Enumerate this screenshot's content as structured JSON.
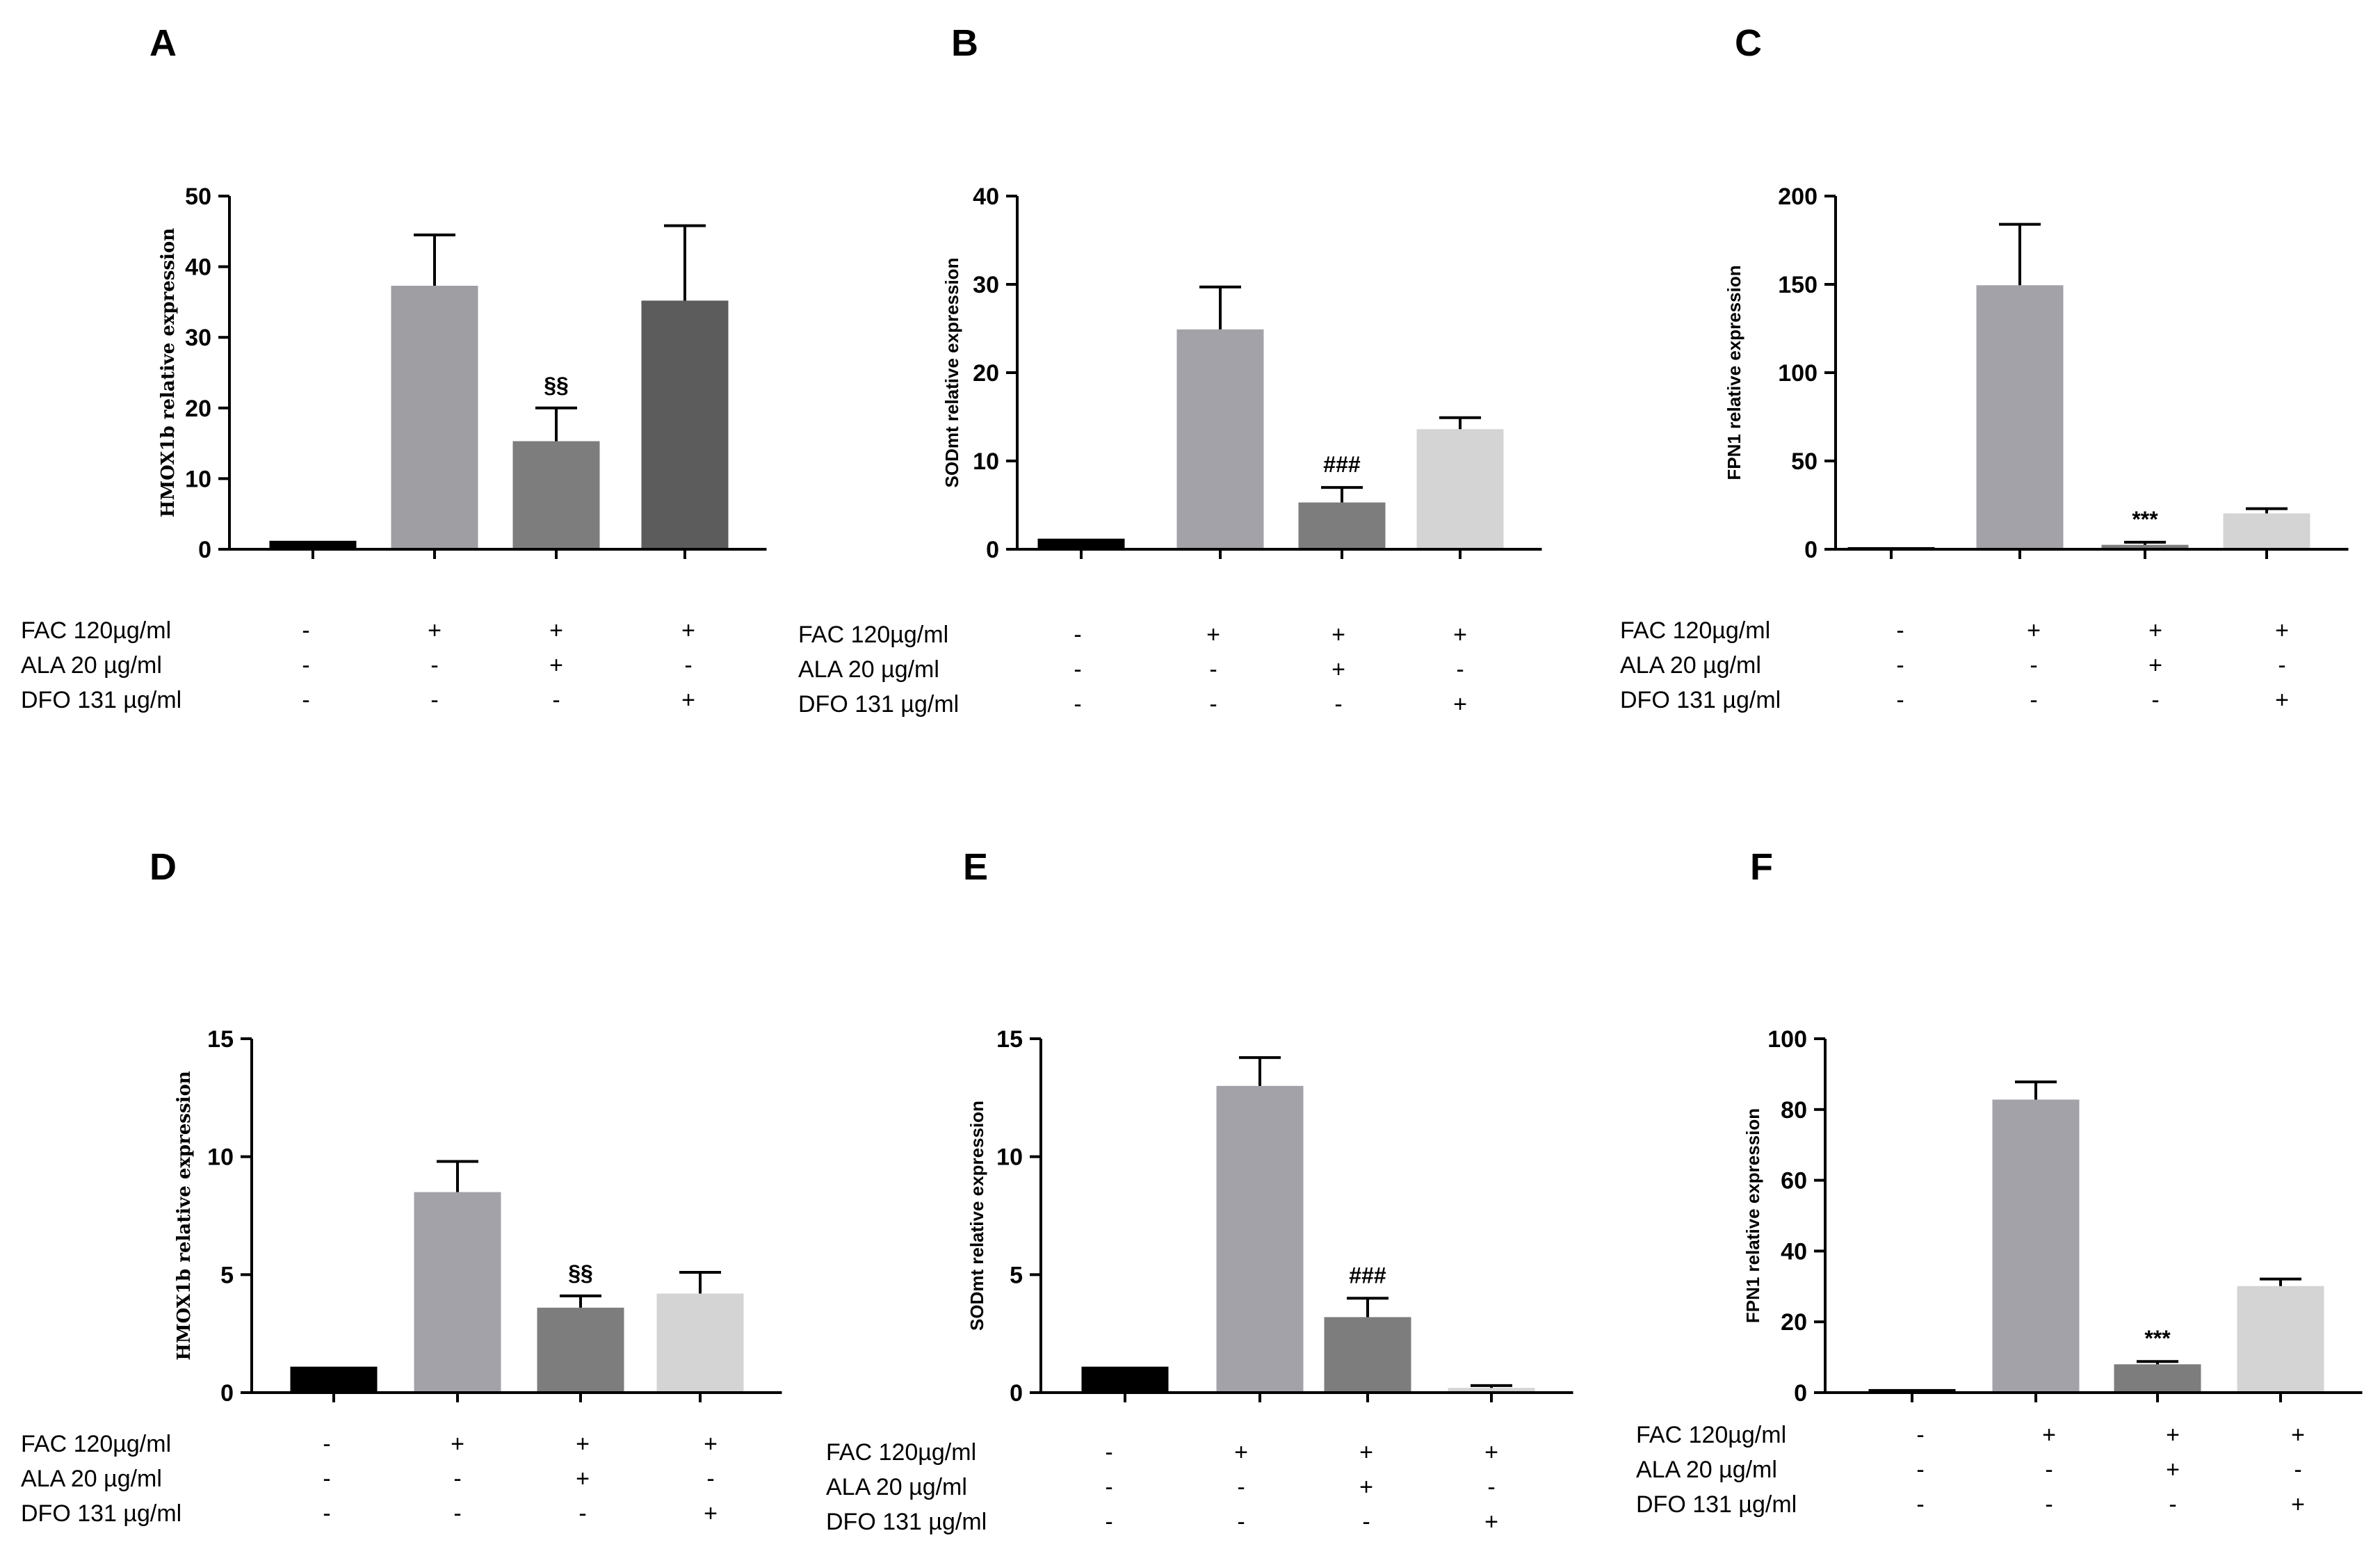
{
  "chart_data": [
    {
      "type": "bar",
      "panel": "A",
      "ylabel": "HMOX1b relative expression",
      "ylabel_serif": true,
      "ylim": [
        0,
        50
      ],
      "yticks": [
        0,
        10,
        20,
        30,
        40,
        50
      ],
      "values": [
        1.2,
        37.3,
        15.3,
        35.2
      ],
      "errors": [
        0,
        7.2,
        4.7,
        10.6
      ],
      "colors": [
        "#000000",
        "#9e9ea3",
        "#7d7d7d",
        "#5c5c5c"
      ],
      "annotations": [
        "",
        "",
        "§§",
        ""
      ],
      "conditions": [
        {
          "label": "FAC 120µg/ml",
          "signs": [
            "-",
            "+",
            "+",
            "+"
          ]
        },
        {
          "label": "ALA 20 µg/ml",
          "signs": [
            "-",
            "-",
            "+",
            "-"
          ]
        },
        {
          "label": "DFO 131 µg/ml",
          "signs": [
            "-",
            "-",
            "-",
            "+"
          ]
        }
      ]
    },
    {
      "type": "bar",
      "panel": "B",
      "ylabel": "SODmt relative expression",
      "ylabel_serif": false,
      "ylim": [
        0,
        40
      ],
      "yticks": [
        0,
        10,
        20,
        30,
        40
      ],
      "values": [
        1.2,
        24.9,
        5.3,
        13.6
      ],
      "errors": [
        0,
        4.8,
        1.7,
        1.3
      ],
      "colors": [
        "#000000",
        "#a3a2a8",
        "#7d7d7d",
        "#d4d4d4"
      ],
      "annotations": [
        "",
        "",
        "###",
        ""
      ],
      "conditions": [
        {
          "label": "FAC 120µg/ml",
          "signs": [
            "-",
            "+",
            "+",
            "+"
          ]
        },
        {
          "label": "ALA 20 µg/ml",
          "signs": [
            "-",
            "-",
            "+",
            "-"
          ]
        },
        {
          "label": "DFO 131 µg/ml",
          "signs": [
            "-",
            "-",
            "-",
            "+"
          ]
        }
      ]
    },
    {
      "type": "bar",
      "panel": "C",
      "ylabel": "FPN1 relative expression",
      "ylabel_serif": false,
      "ylim": [
        0,
        200
      ],
      "yticks": [
        0,
        50,
        100,
        150,
        200
      ],
      "values": [
        1.2,
        149.5,
        2.5,
        20.3
      ],
      "errors": [
        0,
        34.5,
        1.5,
        2.7
      ],
      "colors": [
        "#000000",
        "#a3a2a8",
        "#7d7d7d",
        "#d4d4d4"
      ],
      "annotations": [
        "",
        "",
        "***",
        ""
      ],
      "conditions": [
        {
          "label": "FAC 120µg/ml",
          "signs": [
            "-",
            "+",
            "+",
            "+"
          ]
        },
        {
          "label": "ALA 20 µg/ml",
          "signs": [
            "-",
            "-",
            "+",
            "-"
          ]
        },
        {
          "label": "DFO 131 µg/ml",
          "signs": [
            "-",
            "-",
            "-",
            "+"
          ]
        }
      ]
    },
    {
      "type": "bar",
      "panel": "D",
      "ylabel": "HMOX1b relative expression",
      "ylabel_serif": true,
      "ylim": [
        0,
        15
      ],
      "yticks": [
        0,
        5,
        10,
        15
      ],
      "values": [
        1.1,
        8.5,
        3.6,
        4.2
      ],
      "errors": [
        0,
        1.3,
        0.5,
        0.9
      ],
      "colors": [
        "#000000",
        "#a3a2a8",
        "#7d7d7d",
        "#d4d4d4"
      ],
      "annotations": [
        "",
        "",
        "§§",
        ""
      ],
      "conditions": [
        {
          "label": "FAC 120µg/ml",
          "signs": [
            "-",
            "+",
            "+",
            "+"
          ]
        },
        {
          "label": "ALA 20 µg/ml",
          "signs": [
            "-",
            "-",
            "+",
            "-"
          ]
        },
        {
          "label": "DFO 131 µg/ml",
          "signs": [
            "-",
            "-",
            "-",
            "+"
          ]
        }
      ]
    },
    {
      "type": "bar",
      "panel": "E",
      "ylabel": "SODmt relative expression",
      "ylabel_serif": false,
      "ylim": [
        0,
        15
      ],
      "yticks": [
        0,
        5,
        10,
        15
      ],
      "values": [
        1.1,
        13.0,
        3.2,
        0.2
      ],
      "errors": [
        0,
        1.2,
        0.8,
        0.1
      ],
      "colors": [
        "#000000",
        "#a3a2a8",
        "#7d7d7d",
        "#d4d4d4"
      ],
      "annotations": [
        "",
        "",
        "###",
        ""
      ],
      "conditions": [
        {
          "label": "FAC 120µg/ml",
          "signs": [
            "-",
            "+",
            "+",
            "+"
          ]
        },
        {
          "label": "ALA 20 µg/ml",
          "signs": [
            "-",
            "-",
            "+",
            "-"
          ]
        },
        {
          "label": "DFO 131 µg/ml",
          "signs": [
            "-",
            "-",
            "-",
            "+"
          ]
        }
      ]
    },
    {
      "type": "bar",
      "panel": "F",
      "ylabel": "FPN1 relative expression",
      "ylabel_serif": false,
      "ylim": [
        0,
        100
      ],
      "yticks": [
        0,
        20,
        40,
        60,
        80,
        100
      ],
      "values": [
        1.0,
        82.8,
        8.0,
        30.1
      ],
      "errors": [
        0,
        5.0,
        0.8,
        2.0
      ],
      "colors": [
        "#000000",
        "#a3a2a8",
        "#7d7d7d",
        "#d4d4d4"
      ],
      "annotations": [
        "",
        "",
        "***",
        ""
      ],
      "conditions": [
        {
          "label": "FAC 120µg/ml",
          "signs": [
            "-",
            "+",
            "+",
            "+"
          ]
        },
        {
          "label": "ALA 20 µg/ml",
          "signs": [
            "-",
            "-",
            "+",
            "-"
          ]
        },
        {
          "label": "DFO 131 µg/ml",
          "signs": [
            "-",
            "-",
            "-",
            "+"
          ]
        }
      ]
    }
  ]
}
